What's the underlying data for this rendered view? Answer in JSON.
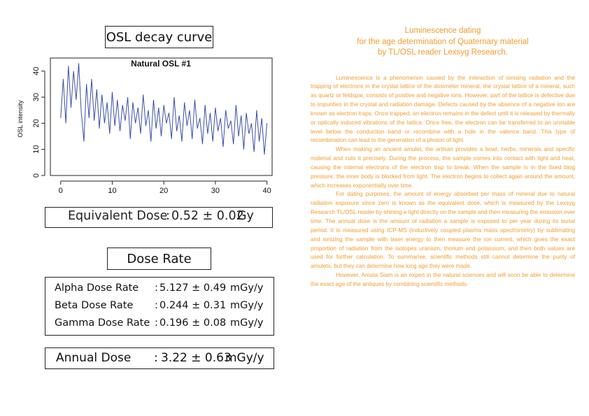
{
  "left_panel": {
    "osl_title": "OSL decay curve",
    "equivalent_dose": {
      "label": "Equivalent Dose",
      "colon": ":",
      "value": "0.52 ± 0.02",
      "unit": "Gy"
    },
    "dose_rate_title": "Dose Rate",
    "dose_rates": [
      {
        "label": "Alpha Dose Rate",
        "colon": ":",
        "value": "5.127 ± 0.49",
        "unit": "mGy/y"
      },
      {
        "label": "Beta Dose Rate",
        "colon": ":",
        "value": "0.244 ± 0.31",
        "unit": "mGy/y"
      },
      {
        "label": "Gamma Dose Rate",
        "colon": ":",
        "value": "0.196 ± 0.08",
        "unit": "mGy/y"
      }
    ],
    "annual_dose": {
      "label": "Annual Dose",
      "colon": ":",
      "value": "3.22 ± 0.63",
      "unit": "mGy/y"
    }
  },
  "right_panel": {
    "heading_lines": [
      "Luminescence dating",
      "for the age determination of Quaternary material",
      "by TL/OSL reader Lexsyg Research."
    ],
    "paragraphs": [
      "Luminescence is a phenomenon caused by the interaction of ionising radiation and the trapping of electrons in the crystal lattice of the dosimeter mineral. the crystal lattice of a mineral, such as quartz or feldspar, consists of positive and negative ions. However, part of the lattice is defective due to impurities in the crystal and radiation damage. Defects caused by the absence of a negative ion are known as electron traps. Once trapped, an electron remains in the defect until it is released by thermally or optically induced vibrations of the lattice. Once free, the electron can be transferred to an unstable level below the conduction band or recombine with a hole in the valence band. This type of recombination can lead to the generation of a photon of light.",
      "When making an ancient amulet, the artisan provides a bowl, herbs, minerals and specific material and cuts it precisely. During the process, the sample comes into contact with light and heat, causing the internal electrons of the electron trap to break. When the sample is in the fixed blog pressure, the inner body is blocked from light. The electron begins to collect again around the amount, which increases exponentially over time.",
      "For dating purposes, the amount of energy absorbed per mass of mineral due to natural radiation exposure since zero is known as the equivalent dose, which is measured by the Lexsyg Research TL/OSL reader by shining a light directly on the sample and then measuring the emission over time. The annual dose is the amount of radiation a sample is exposed to per year during its burial period. It is measured using ICP-MS (inductively coupled plasma mass spectrometry) by sublimating and ionizing the sample with laser energy to then measure the ion current, which gives the exact proportion of radiation from the isotopes uranium, thorium and potassium, and then both values are used for further calculation. To summarise, scientific methods still cannot determine the purity of amulets, but they can determine how long ago they were made.",
      "However, Amata Siam is an expert in the natural sciences and will soon be able to determine the exact age of the antiques by combining scientific methods."
    ]
  },
  "chart_data": {
    "type": "line",
    "title": "Natural OSL #1",
    "xlabel": "",
    "ylabel": "OSL intensity",
    "xlim": [
      -2,
      41
    ],
    "ylim": [
      0,
      45
    ],
    "x_ticks": [
      0,
      10,
      20,
      30,
      40
    ],
    "y_ticks": [
      0,
      10,
      20,
      30,
      40
    ],
    "grid": false,
    "line_color": "#3b4fa8",
    "x": [
      0,
      0.5,
      1,
      1.5,
      2,
      2.5,
      3,
      3.5,
      4,
      4.5,
      5,
      5.5,
      6,
      6.5,
      7,
      7.5,
      8,
      8.5,
      9,
      9.5,
      10,
      10.5,
      11,
      11.5,
      12,
      12.5,
      13,
      13.5,
      14,
      14.5,
      15,
      15.5,
      16,
      16.5,
      17,
      17.5,
      18,
      18.5,
      19,
      19.5,
      20,
      20.5,
      21,
      21.5,
      22,
      22.5,
      23,
      23.5,
      24,
      24.5,
      25,
      25.5,
      26,
      26.5,
      27,
      27.5,
      28,
      28.5,
      29,
      29.5,
      30,
      30.5,
      31,
      31.5,
      32,
      32.5,
      33,
      33.5,
      34,
      34.5,
      35,
      35.5,
      36,
      36.5,
      37,
      37.5,
      38,
      38.5,
      39,
      39.5,
      40
    ],
    "values": [
      22,
      37,
      20,
      42,
      26,
      40,
      29,
      43,
      24,
      13,
      35,
      22,
      37,
      21,
      33,
      18,
      31,
      20,
      28,
      16,
      32,
      19,
      29,
      17,
      27,
      21,
      30,
      14,
      28,
      20,
      26,
      16,
      31,
      19,
      25,
      13,
      29,
      18,
      26,
      15,
      27,
      20,
      24,
      14,
      30,
      17,
      23,
      13,
      28,
      19,
      25,
      14,
      29,
      18,
      22,
      12,
      27,
      16,
      24,
      13,
      26,
      17,
      22,
      11,
      25,
      18,
      21,
      12,
      27,
      15,
      23,
      10,
      24,
      16,
      20,
      9,
      25,
      13,
      22,
      8,
      20
    ]
  }
}
